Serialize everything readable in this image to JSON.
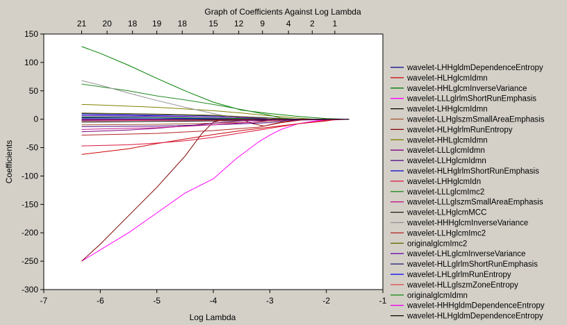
{
  "chart_data": {
    "type": "line",
    "title": "Graph of Coefficients Against Log Lambda",
    "xlabel": "Log Lambda",
    "ylabel": "Coefficients",
    "xlim": [
      -7,
      -1
    ],
    "ylim": [
      -300,
      150
    ],
    "x_ticks": [
      -7,
      -6,
      -5,
      -4,
      -3,
      -2,
      -1
    ],
    "y_ticks": [
      -300,
      -250,
      -200,
      -150,
      -100,
      -50,
      0,
      50,
      100,
      150
    ],
    "top_axis": {
      "positions": [
        -6.33,
        -5.88,
        -5.43,
        -5.0,
        -4.55,
        -4.0,
        -3.55,
        -3.13,
        -2.67,
        -2.25,
        -1.85
      ],
      "labels": [
        "21",
        "20",
        "18",
        "19",
        "18",
        "15",
        "12",
        "9",
        "4",
        "2",
        "1"
      ]
    },
    "grid": false,
    "legend_position": "right",
    "series": [
      {
        "name": "wavelet-LHHgldmDependenceEntropy",
        "color": "#00008b",
        "x": [
          -6.33,
          -5,
          -4,
          -3.1,
          -2.6,
          -2.2,
          -1.6
        ],
        "y": [
          10,
          8,
          6,
          3,
          0,
          0,
          0
        ]
      },
      {
        "name": "wavelet-HLHglcmIdmn",
        "color": "#cc0000",
        "x": [
          -6.33,
          -5.5,
          -5,
          -4.5,
          -4,
          -3.5,
          -3,
          -2.5,
          -2,
          -1.8,
          -1.6
        ],
        "y": [
          -62,
          -52,
          -43,
          -35,
          -27,
          -20,
          -14,
          -8,
          -3,
          0,
          0
        ]
      },
      {
        "name": "wavelet-HHLglcmInverseVariance",
        "color": "#008000",
        "x": [
          -6.33,
          -6,
          -5.5,
          -5,
          -4.5,
          -4,
          -3.5,
          -3,
          -2.5,
          -2,
          -1.6
        ],
        "y": [
          128,
          116,
          95,
          72,
          50,
          30,
          16,
          10,
          5,
          1,
          0
        ]
      },
      {
        "name": "wavelet-LLLglrlmShortRunEmphasis",
        "color": "#ff00ff",
        "x": [
          -6.33,
          -6,
          -5.5,
          -5,
          -4.5,
          -4,
          -3.6,
          -3.2,
          -3,
          -2.8,
          -2.5,
          -2.2,
          -2,
          -1.8,
          -1.6
        ],
        "y": [
          -250,
          -230,
          -200,
          -165,
          -130,
          -105,
          -70,
          -40,
          -28,
          -18,
          -8,
          -3,
          -1,
          0,
          0
        ]
      },
      {
        "name": "wavelet-LHHglcmIdmn",
        "color": "#000000",
        "x": [
          -6.33,
          -5,
          -4,
          -3,
          -2.5,
          -1.6
        ],
        "y": [
          -5,
          -4,
          -3,
          -2,
          0,
          0
        ]
      },
      {
        "name": "wavelet-LLHglszmSmallAreaEmphasis",
        "color": "#a0522d",
        "x": [
          -6.33,
          -5,
          -4,
          -3.2,
          -2.8,
          -2.2,
          -1.6
        ],
        "y": [
          -10,
          -9,
          -7,
          -5,
          -2,
          0,
          0
        ]
      },
      {
        "name": "wavelet-HLHglrlmRunEntropy",
        "color": "#800000",
        "x": [
          -6.33,
          -6,
          -5.5,
          -5,
          -4.5,
          -4.2,
          -4,
          -3.8,
          -3.5,
          -3.3,
          -3.1,
          -2.8,
          -2.5,
          -2.2,
          -1.6
        ],
        "y": [
          -250,
          -220,
          -170,
          -120,
          -65,
          -25,
          -5,
          -1,
          0,
          -8,
          -12,
          -5,
          -1,
          0,
          0
        ]
      },
      {
        "name": "wavelet-HHLglcmIdmn",
        "color": "#808000",
        "x": [
          -6.33,
          -6,
          -5.5,
          -5,
          -4.5,
          -4,
          -3.5,
          -3,
          -2.5,
          -2.2,
          -1.6
        ],
        "y": [
          26,
          25,
          23,
          21,
          18,
          15,
          11,
          6,
          2,
          0,
          0
        ]
      },
      {
        "name": "wavelet-LLLglcmIdmn",
        "color": "#800080",
        "x": [
          -6.33,
          -5.5,
          -5,
          -4.5,
          -4,
          -3.5,
          -3.1,
          -2.8,
          -2.4,
          -1.6
        ],
        "y": [
          -22,
          -19,
          -16,
          -12,
          -7,
          -3,
          -1,
          0,
          0,
          0
        ]
      },
      {
        "name": "wavelet-LLHglcmIdmn",
        "color": "#4b0082",
        "x": [
          -6.33,
          -5,
          -4,
          -3,
          -2.7,
          -1.6
        ],
        "y": [
          -13,
          -12,
          -10,
          -6,
          -2,
          0
        ]
      },
      {
        "name": "wavelet-HLHglrlmShortRunEmphasis",
        "color": "#0000cd",
        "x": [
          -6.33,
          -5,
          -4,
          -3,
          -2.7,
          -1.6
        ],
        "y": [
          8,
          6,
          4,
          2,
          0,
          0
        ]
      },
      {
        "name": "wavelet-LHHglcmIdn",
        "color": "#dc143c",
        "x": [
          -6.33,
          -5.5,
          -5,
          -4.5,
          -4,
          -3.5,
          -3,
          -2.5,
          -2,
          -1.6
        ],
        "y": [
          -47,
          -45,
          -42,
          -38,
          -32,
          -24,
          -16,
          -8,
          -2,
          0
        ]
      },
      {
        "name": "wavelet-LLLglcmImc2",
        "color": "#228b22",
        "x": [
          -6.33,
          -5.5,
          -5,
          -4.5,
          -4,
          -3.5,
          -3,
          -2.8,
          -2.5,
          -2.2,
          -1.6
        ],
        "y": [
          62,
          50,
          41,
          34,
          26,
          17,
          7,
          2,
          0,
          0,
          0
        ]
      },
      {
        "name": "wavelet-LLLglszmSmallAreaEmphasis",
        "color": "#c71585",
        "x": [
          -6.33,
          -5,
          -4,
          -3.3,
          -3,
          -2.5,
          -1.6
        ],
        "y": [
          -18,
          -15,
          -10,
          -5,
          -2,
          0,
          0
        ]
      },
      {
        "name": "wavelet-LLHglcmMCC",
        "color": "#1a1a1a",
        "x": [
          -6.33,
          -5,
          -4,
          -3.3,
          -3,
          -1.6
        ],
        "y": [
          3,
          2,
          1,
          1,
          0,
          0
        ]
      },
      {
        "name": "wavelet-HHHglcmInverseVariance",
        "color": "#909090",
        "x": [
          -6.33,
          -6,
          -5.5,
          -5,
          -4.5,
          -4,
          -3.7,
          -3.4,
          -3.1,
          -2.8,
          -1.6
        ],
        "y": [
          68,
          60,
          46,
          33,
          21,
          10,
          4,
          0,
          0,
          0,
          0
        ]
      },
      {
        "name": "wavelet-LLHglcmImc2",
        "color": "#b22222",
        "x": [
          -6.33,
          -5,
          -4,
          -3.2,
          -2.8,
          -2.4,
          -1.6
        ],
        "y": [
          -28,
          -25,
          -20,
          -14,
          -6,
          -1,
          0
        ]
      },
      {
        "name": "originalglcmImc2",
        "color": "#6b6b00",
        "x": [
          -6.33,
          -5,
          -4,
          -3.4,
          -3,
          -2.6,
          -1.6
        ],
        "y": [
          11,
          9,
          7,
          4,
          2,
          0,
          0
        ]
      },
      {
        "name": "wavelet-LHLglcmInverseVariance",
        "color": "#6a0dad",
        "x": [
          -6.33,
          -5,
          -4,
          -3.4,
          -3,
          -1.6
        ],
        "y": [
          6,
          5,
          4,
          3,
          0,
          0
        ]
      },
      {
        "name": "wavelet-HLLglrlmShortRunEmphasis",
        "color": "#191970",
        "x": [
          -6.33,
          -5,
          -4,
          -3.4,
          -3,
          -1.6
        ],
        "y": [
          -2,
          -2,
          -1,
          -1,
          0,
          0
        ]
      },
      {
        "name": "wavelet-LHLglrlmRunEntropy",
        "color": "#0000ff",
        "x": [
          -6.33,
          -5,
          -4,
          -3.4,
          -3,
          -1.6
        ],
        "y": [
          2,
          2,
          1,
          1,
          0,
          0
        ]
      },
      {
        "name": "wavelet-HLLglszmZoneEntropy",
        "color": "#e0404a",
        "x": [
          -6.33,
          -5,
          -4,
          -3.4,
          -3,
          -1.6
        ],
        "y": [
          -3,
          -2,
          -2,
          -1,
          0,
          0
        ]
      },
      {
        "name": "originalglcmIdmn",
        "color": "#1e8c1e",
        "x": [
          -6.33,
          -5,
          -4,
          -3.4,
          -3,
          -1.6
        ],
        "y": [
          4,
          3,
          2,
          1,
          0,
          0
        ]
      },
      {
        "name": "wavelet-HHHgldmDependenceEntropy",
        "color": "#ee00ee",
        "x": [
          -6.33,
          -5,
          -4,
          -3.4,
          -3,
          -1.6
        ],
        "y": [
          -1,
          -1,
          0,
          0,
          0,
          0
        ]
      },
      {
        "name": "wavelet-HLHgldmDependenceEntropy",
        "color": "#000000",
        "x": [
          -6.33,
          -5,
          -4,
          -3.4,
          -3,
          -1.6
        ],
        "y": [
          0,
          0,
          0,
          0,
          0,
          0
        ]
      }
    ]
  }
}
